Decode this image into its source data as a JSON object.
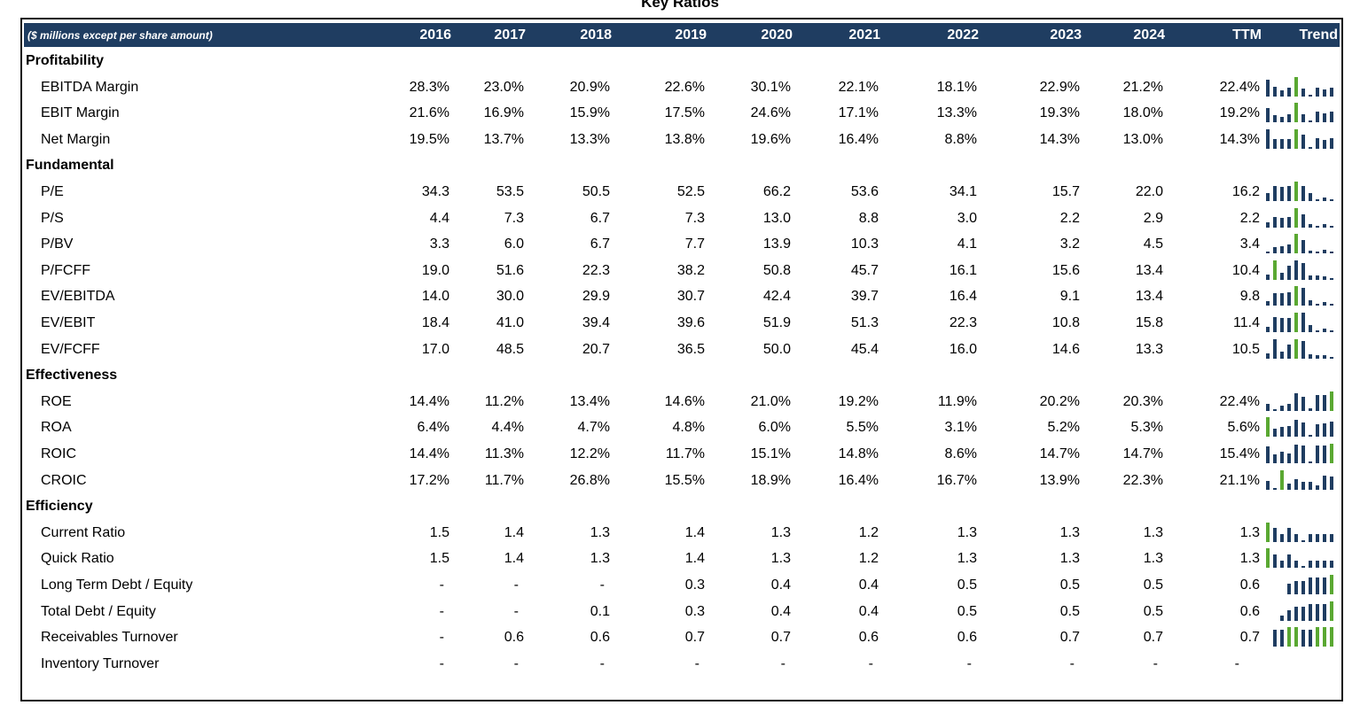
{
  "title": "Key Ratios",
  "header": {
    "note": "($ millions except per share amount)",
    "years": [
      "2016",
      "2017",
      "2018",
      "2019",
      "2020",
      "2021",
      "2022",
      "2023",
      "2024"
    ],
    "ttm": "TTM",
    "trend": "Trend"
  },
  "colors": {
    "header_bg": "#1f3d61",
    "bar": "#1f3d61",
    "bar_highlight": "#5aa832"
  },
  "rows": [
    {
      "type": "section",
      "label": "Profitability"
    },
    {
      "type": "metric",
      "label": "EBITDA Margin",
      "values": [
        "28.3%",
        "23.0%",
        "20.9%",
        "22.6%",
        "30.1%",
        "22.1%",
        "18.1%",
        "22.9%",
        "21.2%"
      ],
      "ttm": "22.4%",
      "trend": [
        28.3,
        23.0,
        20.9,
        22.6,
        30.1,
        22.1,
        18.1,
        22.9,
        21.2,
        22.4
      ]
    },
    {
      "type": "metric",
      "label": "EBIT Margin",
      "values": [
        "21.6%",
        "16.9%",
        "15.9%",
        "17.5%",
        "24.6%",
        "17.1%",
        "13.3%",
        "19.3%",
        "18.0%"
      ],
      "ttm": "19.2%",
      "trend": [
        21.6,
        16.9,
        15.9,
        17.5,
        24.6,
        17.1,
        13.3,
        19.3,
        18.0,
        19.2
      ]
    },
    {
      "type": "metric",
      "label": "Net Margin",
      "values": [
        "19.5%",
        "13.7%",
        "13.3%",
        "13.8%",
        "19.6%",
        "16.4%",
        "8.8%",
        "14.3%",
        "13.0%"
      ],
      "ttm": "14.3%",
      "trend": [
        19.5,
        13.7,
        13.3,
        13.8,
        19.6,
        16.4,
        8.8,
        14.3,
        13.0,
        14.3
      ]
    },
    {
      "type": "section",
      "label": "Fundamental"
    },
    {
      "type": "metric",
      "label": "P/E",
      "values": [
        "34.3",
        "53.5",
        "50.5",
        "52.5",
        "66.2",
        "53.6",
        "34.1",
        "15.7",
        "22.0"
      ],
      "ttm": "16.2",
      "trend": [
        34.3,
        53.5,
        50.5,
        52.5,
        66.2,
        53.6,
        34.1,
        15.7,
        22.0,
        16.2
      ]
    },
    {
      "type": "metric",
      "label": "P/S",
      "values": [
        "4.4",
        "7.3",
        "6.7",
        "7.3",
        "13.0",
        "8.8",
        "3.0",
        "2.2",
        "2.9"
      ],
      "ttm": "2.2",
      "trend": [
        4.4,
        7.3,
        6.7,
        7.3,
        13.0,
        8.8,
        3.0,
        2.2,
        2.9,
        2.2
      ]
    },
    {
      "type": "metric",
      "label": "P/BV",
      "values": [
        "3.3",
        "6.0",
        "6.7",
        "7.7",
        "13.9",
        "10.3",
        "4.1",
        "3.2",
        "4.5"
      ],
      "ttm": "3.4",
      "trend": [
        3.3,
        6.0,
        6.7,
        7.7,
        13.9,
        10.3,
        4.1,
        3.2,
        4.5,
        3.4
      ]
    },
    {
      "type": "metric",
      "label": "P/FCFF",
      "values": [
        "19.0",
        "51.6",
        "22.3",
        "38.2",
        "50.8",
        "45.7",
        "16.1",
        "15.6",
        "13.4"
      ],
      "ttm": "10.4",
      "trend": [
        19.0,
        51.6,
        22.3,
        38.2,
        50.8,
        45.7,
        16.1,
        15.6,
        13.4,
        10.4
      ]
    },
    {
      "type": "metric",
      "label": "EV/EBITDA",
      "values": [
        "14.0",
        "30.0",
        "29.9",
        "30.7",
        "42.4",
        "39.7",
        "16.4",
        "9.1",
        "13.4"
      ],
      "ttm": "9.8",
      "trend": [
        14.0,
        30.0,
        29.9,
        30.7,
        42.4,
        39.7,
        16.4,
        9.1,
        13.4,
        9.8
      ]
    },
    {
      "type": "metric",
      "label": "EV/EBIT",
      "values": [
        "18.4",
        "41.0",
        "39.4",
        "39.6",
        "51.9",
        "51.3",
        "22.3",
        "10.8",
        "15.8"
      ],
      "ttm": "11.4",
      "trend": [
        18.4,
        41.0,
        39.4,
        39.6,
        51.9,
        51.3,
        22.3,
        10.8,
        15.8,
        11.4
      ]
    },
    {
      "type": "metric",
      "label": "EV/FCFF",
      "values": [
        "17.0",
        "48.5",
        "20.7",
        "36.5",
        "50.0",
        "45.4",
        "16.0",
        "14.6",
        "13.3"
      ],
      "ttm": "10.5",
      "trend": [
        17.0,
        48.5,
        20.7,
        36.5,
        50.0,
        45.4,
        16.0,
        14.6,
        13.3,
        10.5
      ]
    },
    {
      "type": "section",
      "label": "Effectiveness"
    },
    {
      "type": "metric",
      "label": "ROE",
      "values": [
        "14.4%",
        "11.2%",
        "13.4%",
        "14.6%",
        "21.0%",
        "19.2%",
        "11.9%",
        "20.2%",
        "20.3%"
      ],
      "ttm": "22.4%",
      "trend": [
        14.4,
        11.2,
        13.4,
        14.6,
        21.0,
        19.2,
        11.9,
        20.2,
        20.3,
        22.4
      ]
    },
    {
      "type": "metric",
      "label": "ROA",
      "values": [
        "6.4%",
        "4.4%",
        "4.7%",
        "4.8%",
        "6.0%",
        "5.5%",
        "3.1%",
        "5.2%",
        "5.3%"
      ],
      "ttm": "5.6%",
      "trend": [
        6.4,
        4.4,
        4.7,
        4.8,
        6.0,
        5.5,
        3.1,
        5.2,
        5.3,
        5.6
      ]
    },
    {
      "type": "metric",
      "label": "ROIC",
      "values": [
        "14.4%",
        "11.3%",
        "12.2%",
        "11.7%",
        "15.1%",
        "14.8%",
        "8.6%",
        "14.7%",
        "14.7%"
      ],
      "ttm": "15.4%",
      "trend": [
        14.4,
        11.3,
        12.2,
        11.7,
        15.1,
        14.8,
        8.6,
        14.7,
        14.7,
        15.4
      ]
    },
    {
      "type": "metric",
      "label": "CROIC",
      "values": [
        "17.2%",
        "11.7%",
        "26.8%",
        "15.5%",
        "18.9%",
        "16.4%",
        "16.7%",
        "13.9%",
        "22.3%"
      ],
      "ttm": "21.1%",
      "trend": [
        17.2,
        11.7,
        26.8,
        15.5,
        18.9,
        16.4,
        16.7,
        13.9,
        22.3,
        21.1
      ]
    },
    {
      "type": "section",
      "label": "Efficiency"
    },
    {
      "type": "metric",
      "label": "Current Ratio",
      "values": [
        "1.5",
        "1.4",
        "1.3",
        "1.4",
        "1.3",
        "1.2",
        "1.3",
        "1.3",
        "1.3"
      ],
      "ttm": "1.3",
      "trend": [
        1.5,
        1.4,
        1.3,
        1.4,
        1.3,
        1.2,
        1.3,
        1.3,
        1.3,
        1.3
      ]
    },
    {
      "type": "metric",
      "label": "Quick Ratio",
      "values": [
        "1.5",
        "1.4",
        "1.3",
        "1.4",
        "1.3",
        "1.2",
        "1.3",
        "1.3",
        "1.3"
      ],
      "ttm": "1.3",
      "trend": [
        1.5,
        1.4,
        1.3,
        1.4,
        1.3,
        1.2,
        1.3,
        1.3,
        1.3,
        1.3
      ]
    },
    {
      "type": "metric",
      "label": "Long Term Debt / Equity",
      "values": [
        "-",
        "-",
        "-",
        "0.3",
        "0.4",
        "0.4",
        "0.5",
        "0.5",
        "0.5"
      ],
      "ttm": "0.6",
      "trend": [
        0,
        0,
        0,
        0.3,
        0.4,
        0.4,
        0.5,
        0.5,
        0.5,
        0.6
      ]
    },
    {
      "type": "metric",
      "label": "Total Debt / Equity",
      "values": [
        "-",
        "-",
        "0.1",
        "0.3",
        "0.4",
        "0.4",
        "0.5",
        "0.5",
        "0.5"
      ],
      "ttm": "0.6",
      "trend": [
        0,
        0,
        0.1,
        0.3,
        0.4,
        0.4,
        0.5,
        0.5,
        0.5,
        0.6
      ]
    },
    {
      "type": "metric",
      "label": "Receivables Turnover",
      "values": [
        "-",
        "0.6",
        "0.6",
        "0.7",
        "0.7",
        "0.6",
        "0.6",
        "0.7",
        "0.7"
      ],
      "ttm": "0.7",
      "trend": [
        0,
        0.6,
        0.6,
        0.7,
        0.7,
        0.6,
        0.6,
        0.7,
        0.7,
        0.7
      ]
    },
    {
      "type": "metric",
      "label": "Inventory Turnover",
      "values": [
        "-",
        "-",
        "-",
        "-",
        "-",
        "-",
        "-",
        "-",
        "-"
      ],
      "ttm": "-",
      "trend": []
    }
  ]
}
